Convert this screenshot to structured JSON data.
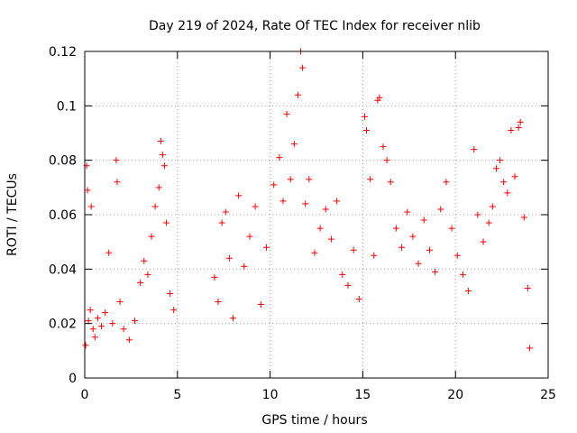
{
  "chart_data": {
    "type": "scatter",
    "title": "Day 219 of 2024, Rate Of TEC Index for receiver nlib",
    "xlabel": "GPS time / hours",
    "ylabel": "ROTI / TECUs",
    "xlim": [
      0,
      25
    ],
    "ylim": [
      0,
      0.12
    ],
    "xticks": [
      0,
      5,
      10,
      15,
      20,
      25
    ],
    "xtick_labels": [
      "0",
      "5",
      "10",
      "15",
      "20",
      "25"
    ],
    "yticks": [
      0,
      0.02,
      0.04,
      0.06,
      0.08,
      0.1,
      0.12
    ],
    "ytick_labels": [
      "0",
      "0.02",
      "0.04",
      "0.06",
      "0.08",
      "0.1",
      "0.12"
    ],
    "grid": true,
    "marker": "plus",
    "color": "#ff0000",
    "series": [
      {
        "points": [
          [
            0.05,
            0.012
          ],
          [
            0.1,
            0.078
          ],
          [
            0.15,
            0.069
          ],
          [
            0.2,
            0.021
          ],
          [
            0.3,
            0.025
          ],
          [
            0.35,
            0.063
          ],
          [
            0.45,
            0.018
          ],
          [
            0.55,
            0.015
          ],
          [
            0.7,
            0.022
          ],
          [
            0.9,
            0.019
          ],
          [
            1.1,
            0.024
          ],
          [
            1.3,
            0.046
          ],
          [
            1.5,
            0.02
          ],
          [
            1.7,
            0.08
          ],
          [
            1.75,
            0.072
          ],
          [
            1.9,
            0.028
          ],
          [
            2.1,
            0.018
          ],
          [
            2.4,
            0.014
          ],
          [
            2.7,
            0.021
          ],
          [
            3.0,
            0.035
          ],
          [
            3.2,
            0.043
          ],
          [
            3.4,
            0.038
          ],
          [
            3.6,
            0.052
          ],
          [
            3.8,
            0.063
          ],
          [
            4.0,
            0.07
          ],
          [
            4.1,
            0.087
          ],
          [
            4.2,
            0.082
          ],
          [
            4.3,
            0.078
          ],
          [
            4.4,
            0.057
          ],
          [
            4.6,
            0.031
          ],
          [
            4.8,
            0.025
          ],
          [
            7.0,
            0.037
          ],
          [
            7.2,
            0.028
          ],
          [
            7.4,
            0.057
          ],
          [
            7.6,
            0.061
          ],
          [
            7.8,
            0.044
          ],
          [
            8.0,
            0.022
          ],
          [
            8.3,
            0.067
          ],
          [
            8.6,
            0.041
          ],
          [
            8.9,
            0.052
          ],
          [
            9.2,
            0.063
          ],
          [
            9.5,
            0.027
          ],
          [
            9.8,
            0.048
          ],
          [
            10.2,
            0.071
          ],
          [
            10.5,
            0.081
          ],
          [
            10.7,
            0.065
          ],
          [
            10.9,
            0.097
          ],
          [
            11.1,
            0.073
          ],
          [
            11.3,
            0.086
          ],
          [
            11.5,
            0.104
          ],
          [
            11.65,
            0.12
          ],
          [
            11.75,
            0.114
          ],
          [
            11.9,
            0.064
          ],
          [
            12.1,
            0.073
          ],
          [
            12.4,
            0.046
          ],
          [
            12.7,
            0.055
          ],
          [
            13.0,
            0.062
          ],
          [
            13.3,
            0.051
          ],
          [
            13.6,
            0.065
          ],
          [
            13.9,
            0.038
          ],
          [
            14.2,
            0.034
          ],
          [
            14.5,
            0.047
          ],
          [
            14.8,
            0.029
          ],
          [
            15.1,
            0.096
          ],
          [
            15.2,
            0.091
          ],
          [
            15.4,
            0.073
          ],
          [
            15.6,
            0.045
          ],
          [
            15.8,
            0.102
          ],
          [
            15.9,
            0.103
          ],
          [
            16.1,
            0.085
          ],
          [
            16.3,
            0.08
          ],
          [
            16.5,
            0.072
          ],
          [
            16.8,
            0.055
          ],
          [
            17.1,
            0.048
          ],
          [
            17.4,
            0.061
          ],
          [
            17.7,
            0.052
          ],
          [
            18.0,
            0.042
          ],
          [
            18.3,
            0.058
          ],
          [
            18.6,
            0.047
          ],
          [
            18.9,
            0.039
          ],
          [
            19.2,
            0.062
          ],
          [
            19.5,
            0.072
          ],
          [
            19.8,
            0.055
          ],
          [
            20.1,
            0.045
          ],
          [
            20.4,
            0.038
          ],
          [
            20.7,
            0.032
          ],
          [
            21.0,
            0.084
          ],
          [
            21.2,
            0.06
          ],
          [
            21.5,
            0.05
          ],
          [
            21.8,
            0.057
          ],
          [
            22.0,
            0.063
          ],
          [
            22.2,
            0.077
          ],
          [
            22.4,
            0.08
          ],
          [
            22.6,
            0.072
          ],
          [
            22.8,
            0.068
          ],
          [
            23.0,
            0.091
          ],
          [
            23.2,
            0.074
          ],
          [
            23.4,
            0.092
          ],
          [
            23.5,
            0.094
          ],
          [
            23.7,
            0.059
          ],
          [
            23.9,
            0.033
          ],
          [
            24.0,
            0.011
          ]
        ]
      }
    ]
  }
}
